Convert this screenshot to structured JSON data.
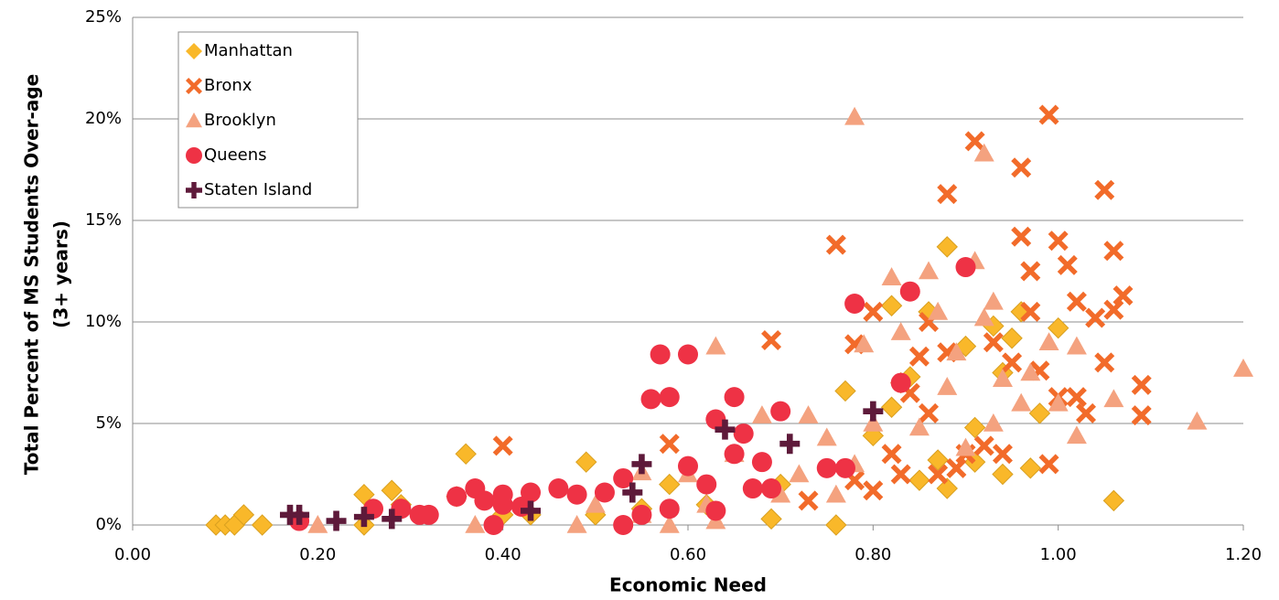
{
  "chart_data": {
    "type": "scatter",
    "xlabel": "Economic Need",
    "ylabel": [
      "Total Percent of MS Students Over-age",
      "(3+ years)"
    ],
    "xlim": [
      0,
      1.2
    ],
    "ylim": [
      0,
      25
    ],
    "xticks": [
      {
        "value": 0,
        "label": "0.00"
      },
      {
        "value": 0.2,
        "label": "0.20"
      },
      {
        "value": 0.4,
        "label": "0.40"
      },
      {
        "value": 0.6,
        "label": "0.60"
      },
      {
        "value": 0.8,
        "label": "0.80"
      },
      {
        "value": 1.0,
        "label": "1.00"
      },
      {
        "value": 1.2,
        "label": "1.20"
      }
    ],
    "yticks": [
      {
        "value": 0,
        "label": "0%"
      },
      {
        "value": 5,
        "label": "5%"
      },
      {
        "value": 10,
        "label": "10%"
      },
      {
        "value": 15,
        "label": "15%"
      },
      {
        "value": 20,
        "label": "20%"
      },
      {
        "value": 25,
        "label": "25%"
      }
    ],
    "grid": true,
    "legend": "top-left",
    "series": [
      {
        "name": "Manhattan",
        "color": "#F9B82A",
        "marker": "diamond",
        "x": [
          0.09,
          0.1,
          0.11,
          0.12,
          0.14,
          0.25,
          0.25,
          0.28,
          0.29,
          0.35,
          0.36,
          0.4,
          0.43,
          0.49,
          0.5,
          0.55,
          0.58,
          0.62,
          0.69,
          0.7,
          0.76,
          0.77,
          0.8,
          0.82,
          0.82,
          0.83,
          0.84,
          0.86,
          0.87,
          0.88,
          0.88,
          0.9,
          0.91,
          0.93,
          0.94,
          0.94,
          0.95,
          0.96,
          0.97,
          0.98,
          1.0,
          1.06,
          0.91,
          0.85
        ],
        "values": [
          0,
          0,
          0,
          0.5,
          0,
          1.5,
          0,
          1.7,
          1.0,
          1.4,
          3.5,
          0.5,
          0.5,
          3.1,
          0.5,
          0.8,
          2.0,
          1.0,
          0.3,
          2.0,
          0,
          6.6,
          4.4,
          10.8,
          5.8,
          7.0,
          7.3,
          10.5,
          3.2,
          13.7,
          1.8,
          8.8,
          4.8,
          9.8,
          2.5,
          7.5,
          9.2,
          10.5,
          2.8,
          5.5,
          9.7,
          1.2,
          3.1,
          2.2
        ]
      },
      {
        "name": "Bronx",
        "color": "#F26B2A",
        "marker": "x",
        "x": [
          0.4,
          0.58,
          0.69,
          0.76,
          0.78,
          0.8,
          0.8,
          0.82,
          0.83,
          0.84,
          0.85,
          0.86,
          0.86,
          0.87,
          0.88,
          0.88,
          0.89,
          0.9,
          0.91,
          0.92,
          0.93,
          0.94,
          0.95,
          0.96,
          0.96,
          0.97,
          0.97,
          0.98,
          0.99,
          0.99,
          1.0,
          1.0,
          1.01,
          1.02,
          1.02,
          1.03,
          1.04,
          1.05,
          1.05,
          1.06,
          1.06,
          1.07,
          1.09,
          1.09,
          0.73,
          0.78
        ],
        "values": [
          3.9,
          4.0,
          9.1,
          13.8,
          8.9,
          10.5,
          1.7,
          3.5,
          2.5,
          6.5,
          8.3,
          10.0,
          5.5,
          2.5,
          16.3,
          8.5,
          2.8,
          3.5,
          18.9,
          3.9,
          9.0,
          3.5,
          8.0,
          17.6,
          14.2,
          12.5,
          10.5,
          7.6,
          20.2,
          3.0,
          14.0,
          6.3,
          12.8,
          11.0,
          6.3,
          5.5,
          10.2,
          8.0,
          16.5,
          13.5,
          10.6,
          11.3,
          6.9,
          5.4,
          1.2,
          2.2
        ]
      },
      {
        "name": "Brooklyn",
        "color": "#F4A27F",
        "marker": "triangle",
        "x": [
          0.2,
          0.37,
          0.48,
          0.5,
          0.55,
          0.58,
          0.6,
          0.62,
          0.63,
          0.63,
          0.65,
          0.68,
          0.7,
          0.72,
          0.73,
          0.75,
          0.76,
          0.78,
          0.78,
          0.79,
          0.8,
          0.82,
          0.83,
          0.85,
          0.86,
          0.87,
          0.88,
          0.89,
          0.9,
          0.91,
          0.92,
          0.92,
          0.93,
          0.93,
          0.94,
          0.96,
          0.97,
          0.99,
          1.0,
          1.02,
          1.02,
          1.06,
          1.15,
          1.2,
          0.55
        ],
        "values": [
          0,
          0,
          0,
          1.0,
          0.5,
          0,
          2.5,
          1.0,
          8.8,
          0.2,
          3.5,
          5.4,
          1.5,
          2.5,
          5.4,
          4.3,
          1.5,
          20.1,
          3.0,
          8.9,
          5.0,
          12.2,
          9.5,
          4.8,
          12.5,
          10.5,
          6.8,
          8.5,
          3.8,
          13.0,
          18.3,
          10.2,
          11.0,
          5.0,
          7.2,
          6.0,
          7.5,
          9.0,
          6.0,
          8.8,
          4.4,
          6.2,
          5.1,
          7.7,
          2.6
        ]
      },
      {
        "name": "Queens",
        "color": "#EE3245",
        "marker": "circle",
        "x": [
          0.18,
          0.26,
          0.29,
          0.31,
          0.32,
          0.35,
          0.37,
          0.38,
          0.39,
          0.4,
          0.4,
          0.42,
          0.43,
          0.46,
          0.48,
          0.51,
          0.53,
          0.53,
          0.55,
          0.56,
          0.57,
          0.58,
          0.58,
          0.6,
          0.6,
          0.62,
          0.63,
          0.63,
          0.65,
          0.65,
          0.66,
          0.67,
          0.68,
          0.69,
          0.7,
          0.75,
          0.77,
          0.78,
          0.83,
          0.84,
          0.9
        ],
        "values": [
          0.2,
          0.8,
          0.8,
          0.5,
          0.5,
          1.4,
          1.8,
          1.2,
          0,
          1.0,
          1.5,
          0.9,
          1.6,
          1.8,
          1.5,
          1.6,
          2.3,
          0,
          0.5,
          6.2,
          8.4,
          6.3,
          0.8,
          8.4,
          2.9,
          2.0,
          5.2,
          0.7,
          6.3,
          3.5,
          4.5,
          1.8,
          3.1,
          1.8,
          5.6,
          2.8,
          2.8,
          10.9,
          7.0,
          11.5,
          12.7
        ]
      },
      {
        "name": "Staten Island",
        "color": "#5E1A3A",
        "marker": "plus",
        "x": [
          0.17,
          0.18,
          0.22,
          0.25,
          0.28,
          0.43,
          0.54,
          0.55,
          0.64,
          0.71,
          0.8
        ],
        "values": [
          0.5,
          0.5,
          0.2,
          0.4,
          0.3,
          0.7,
          1.6,
          3.0,
          4.7,
          4.0,
          5.6
        ]
      }
    ]
  }
}
